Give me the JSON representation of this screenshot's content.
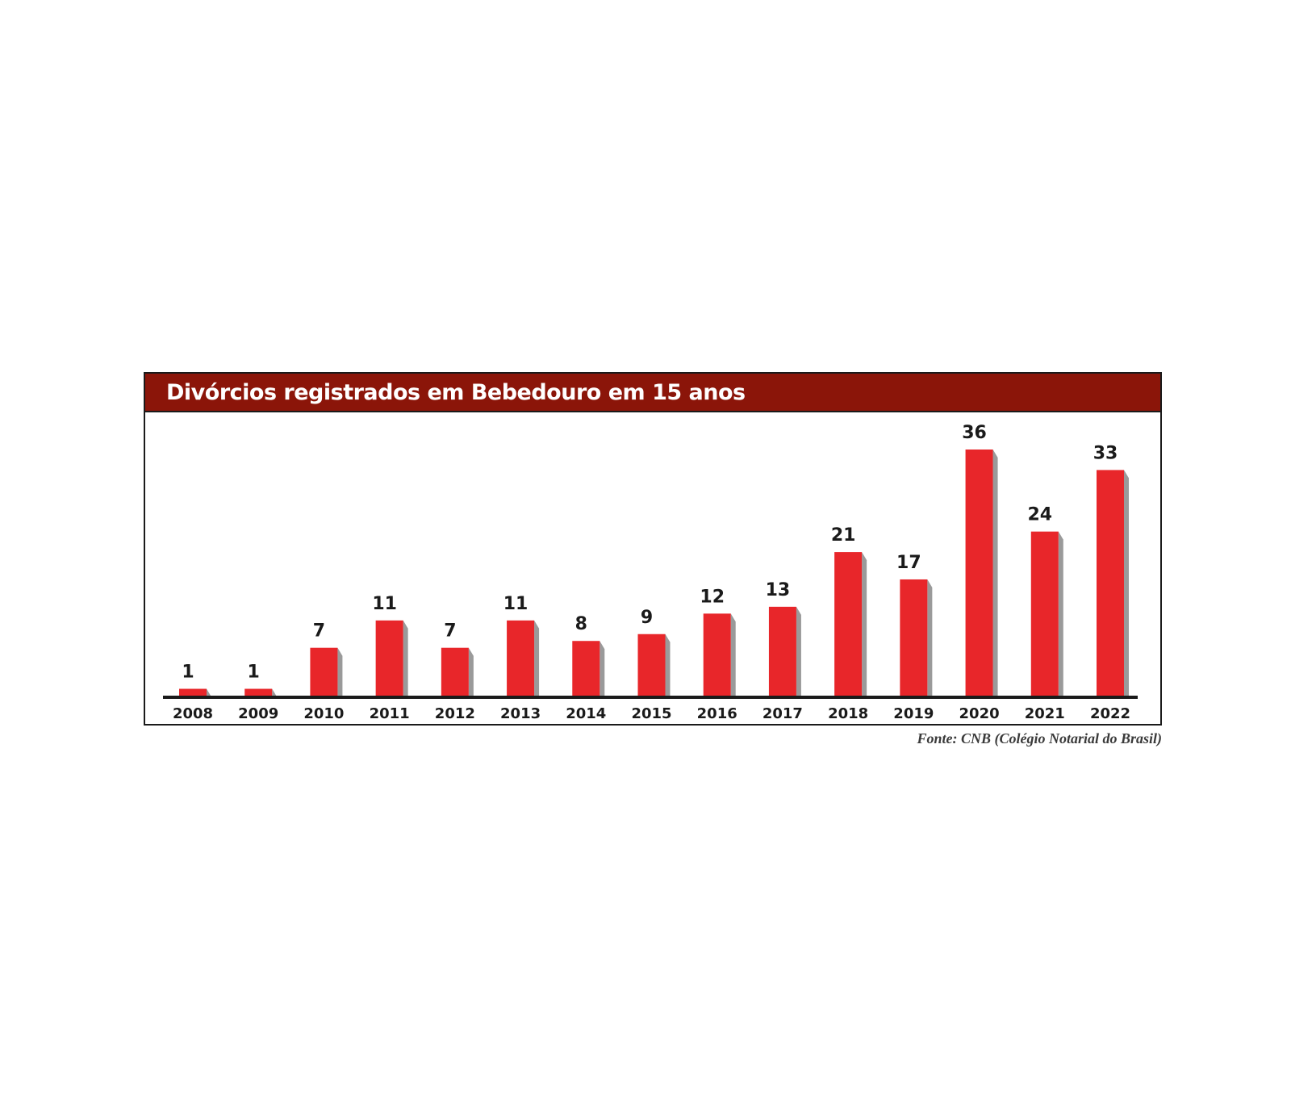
{
  "title": "Divórcios registrados em Bebedouro em 15 anos",
  "source": "Fonte: CNB (Colégio Notarial do Brasil)",
  "colors": {
    "title_bg": "#8b1509",
    "bar": "#e8262a",
    "bar_shadow": "#9a9a9a",
    "axis": "#1a1a1a",
    "text": "#1a1a1a"
  },
  "chart_data": {
    "type": "bar",
    "title": "Divórcios registrados em Bebedouro em 15 anos",
    "xlabel": "",
    "ylabel": "",
    "categories": [
      "2008",
      "2009",
      "2010",
      "2011",
      "2012",
      "2013",
      "2014",
      "2015",
      "2016",
      "2017",
      "2018",
      "2019",
      "2020",
      "2021",
      "2022"
    ],
    "values": [
      1,
      1,
      7,
      11,
      7,
      11,
      8,
      9,
      12,
      13,
      21,
      17,
      36,
      24,
      33
    ],
    "ylim": [
      0,
      36
    ],
    "data_labels": true,
    "grid": false,
    "legend": "none"
  }
}
